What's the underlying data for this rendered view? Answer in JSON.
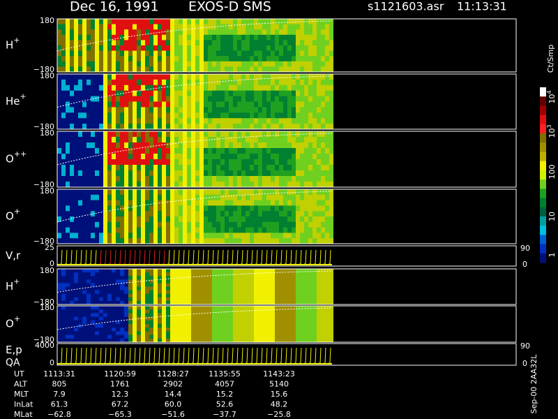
{
  "header": {
    "date": "Dec 16, 1991",
    "instrument": "EXOS-D SMS",
    "file": "s1121603.asr",
    "time": "11:13:31"
  },
  "panels": [
    {
      "label": "H",
      "sup": "+",
      "top": "180",
      "bottom": "−180"
    },
    {
      "label": "He",
      "sup": "+",
      "top": "180",
      "bottom": "−180"
    },
    {
      "label": "O",
      "sup": "++",
      "top": "180",
      "bottom": "−180"
    },
    {
      "label": "O",
      "sup": "+",
      "top": "180",
      "bottom": "−180"
    },
    {
      "label": "V,r",
      "top": "25",
      "bottom": "0",
      "right_top": "90",
      "right_bottom": "0"
    },
    {
      "label": "H",
      "sup": "+",
      "top": "180",
      "bottom": "−180"
    },
    {
      "label": "O",
      "sup": "+",
      "top": "180",
      "bottom": "−180"
    },
    {
      "label": "E,p",
      "label2": "QA",
      "top": "4000",
      "bottom": "0",
      "right_top": "90",
      "right_bottom": "0"
    }
  ],
  "colorbar": {
    "unit": "Ct/Smp",
    "ticks": [
      {
        "base": "10",
        "exp": "4"
      },
      {
        "base": "10",
        "exp": "3"
      },
      {
        "base": "100"
      },
      {
        "base": "10"
      },
      {
        "base": "1"
      }
    ]
  },
  "side_note": "Sep-00 2AA32L",
  "footer": {
    "rows": [
      {
        "name": "UT",
        "values": [
          "1113:31",
          "1120:59",
          "1128:27",
          "1135:55",
          "1143:23"
        ]
      },
      {
        "name": "ALT",
        "values": [
          "805",
          "1761",
          "2902",
          "4057",
          "5140"
        ]
      },
      {
        "name": "MLT",
        "values": [
          "7.9",
          "12.3",
          "14.4",
          "15.2",
          "15.6"
        ]
      },
      {
        "name": "InLat",
        "values": [
          "61.3",
          "67.2",
          "60.0",
          "52.6",
          "48.2"
        ]
      },
      {
        "name": "MLat",
        "values": [
          "−62.8",
          "−65.3",
          "−51.6",
          "−37.7",
          "−25.8"
        ]
      }
    ]
  }
}
